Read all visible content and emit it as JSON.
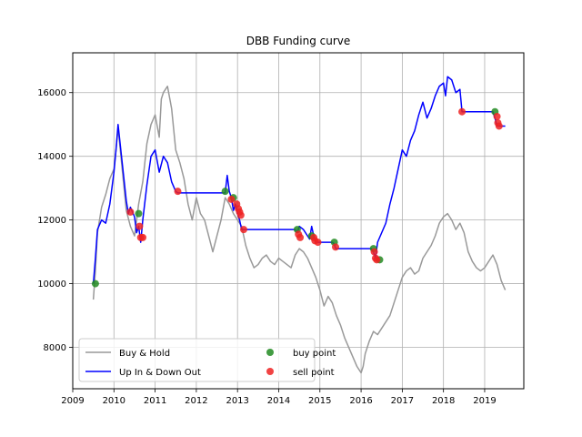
{
  "chart_data": {
    "type": "line",
    "title": "DBB Funding curve",
    "xlabel": "",
    "ylabel": "",
    "xlim": [
      2009.0,
      2019.95
    ],
    "ylim": [
      6700,
      17250
    ],
    "x_ticks": [
      2009,
      2010,
      2011,
      2012,
      2013,
      2014,
      2015,
      2016,
      2017,
      2018,
      2019
    ],
    "x_tick_labels": [
      "2009",
      "2010",
      "2011",
      "2012",
      "2013",
      "2014",
      "2015",
      "2016",
      "2017",
      "2018",
      "2019"
    ],
    "y_ticks": [
      8000,
      10000,
      12000,
      14000,
      16000
    ],
    "y_tick_labels": [
      "8000",
      "10000",
      "12000",
      "14000",
      "16000"
    ],
    "grid": true,
    "legend": {
      "placement": "lower-left",
      "columns": 2
    },
    "series": [
      {
        "name": "Buy & Hold",
        "kind": "line",
        "color": "#999999",
        "x": [
          2009.5,
          2009.55,
          2009.6,
          2009.7,
          2009.8,
          2009.9,
          2010.0,
          2010.05,
          2010.1,
          2010.2,
          2010.3,
          2010.4,
          2010.5,
          2010.6,
          2010.7,
          2010.8,
          2010.9,
          2011.0,
          2011.1,
          2011.15,
          2011.2,
          2011.3,
          2011.4,
          2011.5,
          2011.6,
          2011.7,
          2011.8,
          2011.9,
          2012.0,
          2012.1,
          2012.2,
          2012.3,
          2012.4,
          2012.5,
          2012.6,
          2012.7,
          2012.8,
          2012.9,
          2013.0,
          2013.1,
          2013.2,
          2013.3,
          2013.4,
          2013.5,
          2013.6,
          2013.7,
          2013.8,
          2013.9,
          2014.0,
          2014.1,
          2014.2,
          2014.3,
          2014.4,
          2014.5,
          2014.6,
          2014.7,
          2014.8,
          2014.9,
          2015.0,
          2015.1,
          2015.2,
          2015.3,
          2015.4,
          2015.5,
          2015.6,
          2015.7,
          2015.8,
          2015.9,
          2016.0,
          2016.05,
          2016.1,
          2016.2,
          2016.3,
          2016.4,
          2016.5,
          2016.6,
          2016.7,
          2016.8,
          2016.9,
          2017.0,
          2017.1,
          2017.2,
          2017.3,
          2017.4,
          2017.5,
          2017.6,
          2017.7,
          2017.8,
          2017.9,
          2018.0,
          2018.1,
          2018.2,
          2018.3,
          2018.4,
          2018.5,
          2018.6,
          2018.7,
          2018.8,
          2018.9,
          2019.0,
          2019.1,
          2019.2,
          2019.3,
          2019.4,
          2019.5
        ],
        "y": [
          9500,
          10400,
          11600,
          12400,
          12800,
          13300,
          13600,
          14200,
          14900,
          13600,
          12300,
          11800,
          11500,
          12500,
          13200,
          14400,
          15000,
          15300,
          14600,
          15800,
          16000,
          16200,
          15500,
          14200,
          13800,
          13300,
          12500,
          12000,
          12700,
          12200,
          12000,
          11500,
          11000,
          11500,
          12000,
          12700,
          12500,
          12200,
          12000,
          11800,
          11200,
          10800,
          10500,
          10600,
          10800,
          10900,
          10700,
          10600,
          10800,
          10700,
          10600,
          10500,
          10900,
          11100,
          11000,
          10800,
          10500,
          10200,
          9800,
          9300,
          9600,
          9400,
          9000,
          8700,
          8300,
          8000,
          7700,
          7400,
          7200,
          7400,
          7800,
          8200,
          8500,
          8400,
          8600,
          8800,
          9000,
          9400,
          9800,
          10200,
          10400,
          10500,
          10300,
          10400,
          10800,
          11000,
          11200,
          11500,
          11900,
          12100,
          12200,
          12000,
          11700,
          11900,
          11600,
          11000,
          10700,
          10500,
          10400,
          10500,
          10700,
          10900,
          10600,
          10100,
          9800
        ]
      },
      {
        "name": "Up In & Down Out",
        "kind": "line",
        "color": "#0000ff",
        "x": [
          2009.5,
          2009.55,
          2009.6,
          2009.7,
          2009.8,
          2009.9,
          2010.0,
          2010.05,
          2010.1,
          2010.2,
          2010.3,
          2010.35,
          2010.4,
          2010.5,
          2010.55,
          2010.6,
          2010.65,
          2010.7,
          2010.8,
          2010.9,
          2011.0,
          2011.1,
          2011.2,
          2011.3,
          2011.4,
          2011.5,
          2011.55,
          2012.7,
          2012.75,
          2012.8,
          2012.85,
          2012.9,
          2012.95,
          2013.0,
          2013.05,
          2013.1,
          2013.15,
          2014.4,
          2014.45,
          2014.5,
          2014.6,
          2014.7,
          2014.75,
          2014.8,
          2014.85,
          2014.9,
          2014.95,
          2015.3,
          2015.35,
          2015.38,
          2016.25,
          2016.3,
          2016.35,
          2016.4,
          2016.5,
          2016.6,
          2016.7,
          2016.8,
          2016.9,
          2017.0,
          2017.1,
          2017.2,
          2017.3,
          2017.4,
          2017.5,
          2017.6,
          2017.7,
          2017.8,
          2017.9,
          2018.0,
          2018.05,
          2018.1,
          2018.2,
          2018.3,
          2018.4,
          2018.45,
          2018.5,
          2019.0,
          2019.2,
          2019.25,
          2019.3,
          2019.5
        ],
        "y": [
          10000,
          10800,
          11700,
          12000,
          11900,
          12500,
          13500,
          14200,
          15000,
          13800,
          12600,
          12200,
          12400,
          12100,
          11600,
          11800,
          11300,
          12000,
          13100,
          14000,
          14200,
          13500,
          14000,
          13800,
          13200,
          12900,
          12850,
          12850,
          13400,
          12900,
          12700,
          12300,
          12500,
          12200,
          12000,
          11700,
          11700,
          11700,
          11600,
          11800,
          11700,
          11500,
          11400,
          11800,
          11500,
          11300,
          11300,
          11300,
          11250,
          11100,
          11100,
          11000,
          10800,
          11300,
          11600,
          11900,
          12500,
          13000,
          13600,
          14200,
          14000,
          14500,
          14800,
          15300,
          15700,
          15200,
          15500,
          15900,
          16200,
          16300,
          15900,
          16500,
          16400,
          16000,
          16100,
          15400,
          15400,
          15400,
          15400,
          15200,
          14950,
          14950
        ]
      },
      {
        "name": "buy point",
        "kind": "scatter",
        "color": "#228b22",
        "x": [
          2009.55,
          2010.6,
          2012.7,
          2012.9,
          2014.45,
          2014.8,
          2015.35,
          2016.3,
          2016.45,
          2019.25
        ],
        "y": [
          10000,
          12200,
          12900,
          12700,
          11700,
          11500,
          11300,
          11100,
          10750,
          15400
        ]
      },
      {
        "name": "sell point",
        "kind": "scatter",
        "color": "#ee2222",
        "x": [
          2010.4,
          2010.62,
          2010.65,
          2010.7,
          2011.55,
          2012.85,
          2012.98,
          2013.02,
          2013.05,
          2013.08,
          2013.15,
          2014.48,
          2014.52,
          2014.85,
          2014.88,
          2014.95,
          2015.38,
          2016.32,
          2016.35,
          2016.38,
          2018.45,
          2019.3,
          2019.32,
          2019.35
        ],
        "y": [
          12250,
          11800,
          11450,
          11450,
          12900,
          12650,
          12500,
          12350,
          12250,
          12150,
          11700,
          11550,
          11450,
          11450,
          11350,
          11300,
          11150,
          11000,
          10800,
          10750,
          15400,
          15250,
          15050,
          14950
        ]
      }
    ]
  }
}
